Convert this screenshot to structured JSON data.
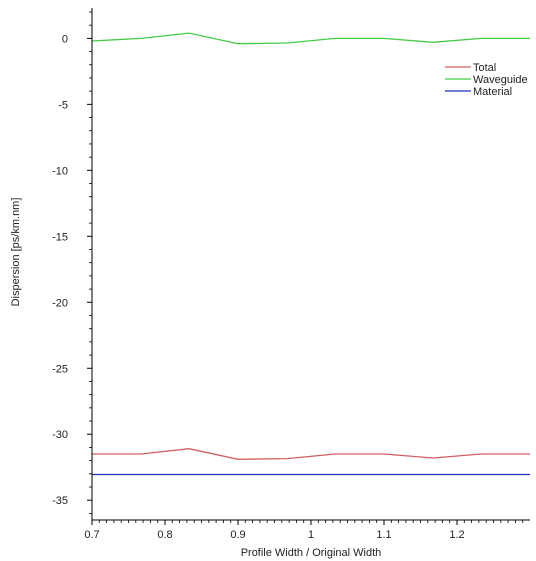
{
  "chart_data": {
    "type": "line",
    "title": "",
    "xlabel": "Profile Width / Original Width",
    "ylabel": "Dispersion [ps/km.nm]",
    "xlim": [
      0.7,
      1.3
    ],
    "ylim": [
      -36.5,
      2
    ],
    "x_ticks": [
      0.7,
      0.8,
      0.9,
      1,
      1.1,
      1.2
    ],
    "x_tick_labels": [
      "0.7",
      "0.8",
      "0.9",
      "1",
      "1.1",
      "1.2"
    ],
    "y_ticks": [
      0,
      -5,
      -10,
      -15,
      -20,
      -25,
      -30,
      -35
    ],
    "y_tick_labels": [
      "0",
      "-5",
      "-10",
      "-15",
      "-20",
      "-25",
      "-30",
      "-35"
    ],
    "grid": false,
    "legend_position": "top-right",
    "series": [
      {
        "name": "Total",
        "color": "#d06060",
        "x": [
          0.7,
          0.767,
          0.833,
          0.9,
          0.967,
          1.033,
          1.1,
          1.167,
          1.233,
          1.3
        ],
        "y": [
          -31.5,
          -31.5,
          -31.1,
          -31.9,
          -31.85,
          -31.5,
          -31.5,
          -31.8,
          -31.5,
          -31.5
        ]
      },
      {
        "name": "Waveguide",
        "color": "#44cc44",
        "x": [
          0.7,
          0.767,
          0.833,
          0.9,
          0.967,
          1.033,
          1.1,
          1.167,
          1.233,
          1.3
        ],
        "y": [
          -0.2,
          0.0,
          0.4,
          -0.4,
          -0.35,
          0.0,
          0.0,
          -0.3,
          0.0,
          0.0
        ]
      },
      {
        "name": "Material",
        "color": "#2233bb",
        "x": [
          0.7,
          1.3
        ],
        "y": [
          -33.05,
          -33.05
        ]
      }
    ]
  }
}
